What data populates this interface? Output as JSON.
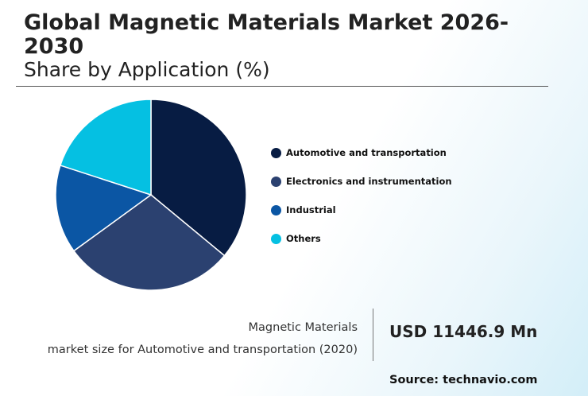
{
  "header": {
    "title": "Global Magnetic Materials Market 2026-2030",
    "subtitle": "Share by Application (%)"
  },
  "chart_data": {
    "type": "pie",
    "categories": [
      "Automotive and transportation",
      "Electronics and instrumentation",
      "Industrial",
      "Others"
    ],
    "values": [
      36,
      29,
      15,
      20
    ],
    "colors": [
      "#071c43",
      "#2b4170",
      "#0b56a4",
      "#05c0e2"
    ],
    "start": "12 o'clock",
    "direction": "clockwise",
    "legend_position": "right"
  },
  "info": {
    "label_line1": "Magnetic Materials",
    "label_line2": "market size for Automotive and transportation (2020)",
    "value": "USD 11446.9 Mn"
  },
  "source": "Source: technavio.com"
}
